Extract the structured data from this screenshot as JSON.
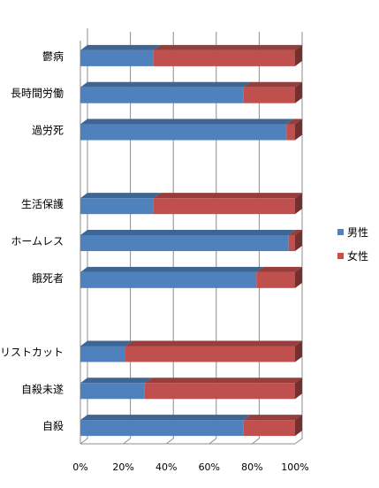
{
  "chart_data": {
    "type": "bar",
    "orientation": "horizontal",
    "stacked": "percent",
    "three_d": true,
    "grid": true,
    "legend_position": "right",
    "categories": [
      "鬱病",
      "長時間労働",
      "過労死",
      "",
      "生活保護",
      "ホームレス",
      "餓死者",
      "",
      "リストカット",
      "自殺未遂",
      "自殺"
    ],
    "series": [
      {
        "name": "男性",
        "values": [
          34,
          76,
          96,
          null,
          34,
          97,
          82,
          null,
          21,
          30,
          76
        ]
      },
      {
        "name": "女性",
        "values": [
          66,
          24,
          4,
          null,
          66,
          3,
          18,
          null,
          79,
          70,
          24
        ]
      }
    ],
    "x_ticks": [
      "0%",
      "20%",
      "40%",
      "60%",
      "80%",
      "100%"
    ],
    "xlim": [
      0,
      100
    ],
    "colors": {
      "男性": "#4F81BD",
      "女性": "#C0504D"
    }
  }
}
